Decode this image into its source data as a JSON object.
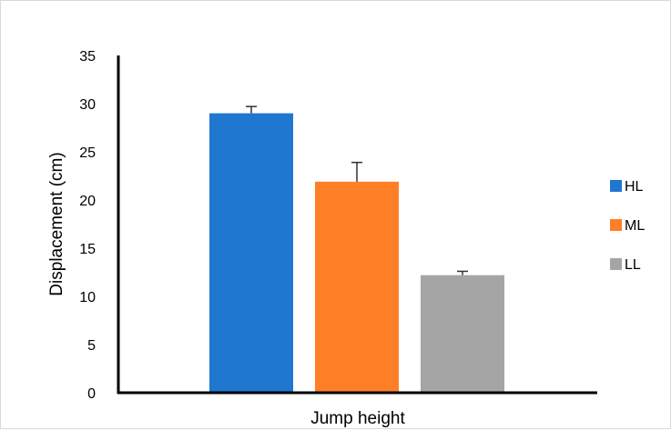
{
  "chart_data": {
    "type": "bar",
    "categories": [
      "Jump height"
    ],
    "xlabel": "Jump height",
    "ylabel": "Displacement (cm)",
    "ylim": [
      0,
      35
    ],
    "yticks": [
      0,
      5,
      10,
      15,
      20,
      25,
      30,
      35
    ],
    "grid": false,
    "legend_position": "right",
    "series": [
      {
        "name": "HL",
        "values": [
          29.0
        ],
        "error": [
          0.7
        ],
        "color": "#1f77d0"
      },
      {
        "name": "ML",
        "values": [
          21.9
        ],
        "error": [
          2.0
        ],
        "color": "#ff7f27"
      },
      {
        "name": "LL",
        "values": [
          12.2
        ],
        "error": [
          0.4
        ],
        "color": "#a5a5a5"
      }
    ]
  }
}
